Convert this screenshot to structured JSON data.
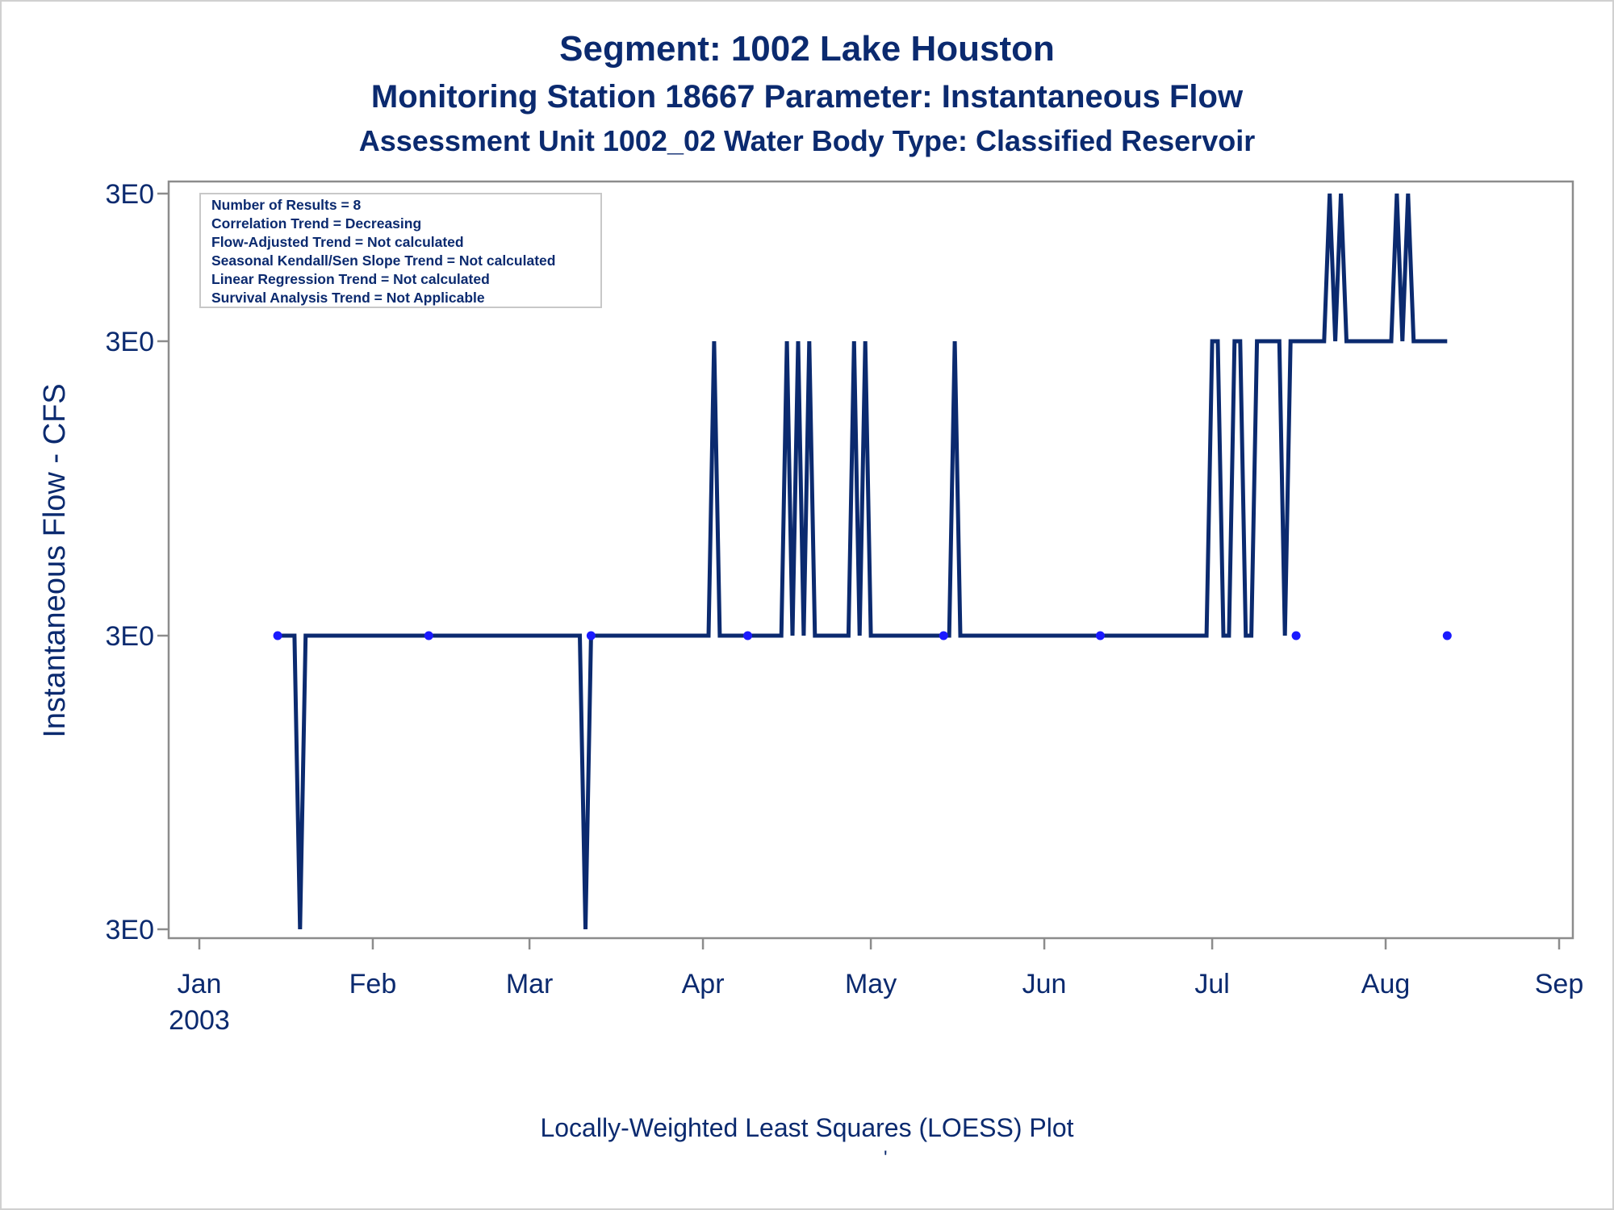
{
  "chart_data": {
    "type": "line",
    "title": "Segment: 1002  Lake Houston",
    "subtitle1": "Monitoring Station 18667 Parameter: Instantaneous Flow",
    "subtitle2": "Assessment Unit 1002_02   Water Body Type: Classified Reservoir",
    "ylabel": "Instantaneous Flow - CFS",
    "footnote": "Locally-Weighted Least Squares (LOESS) Plot",
    "footmark": "'",
    "x_ticks": [
      {
        "date": "2003-01-01",
        "label": "Jan",
        "sublabel": "2003"
      },
      {
        "date": "2003-02-01",
        "label": "Feb"
      },
      {
        "date": "2003-03-01",
        "label": "Mar"
      },
      {
        "date": "2003-04-01",
        "label": "Apr"
      },
      {
        "date": "2003-05-01",
        "label": "May"
      },
      {
        "date": "2003-06-01",
        "label": "Jun"
      },
      {
        "date": "2003-07-01",
        "label": "Jul"
      },
      {
        "date": "2003-08-01",
        "label": "Aug"
      },
      {
        "date": "2003-09-01",
        "label": "Sep"
      }
    ],
    "y_ticks": [
      {
        "level": 0,
        "label": "3E0"
      },
      {
        "level": 1,
        "label": "3E0"
      },
      {
        "level": 2,
        "label": "3E0"
      },
      {
        "level": 3,
        "label": "3E0"
      }
    ],
    "stats_box": [
      "Number of Results = 8",
      "Correlation Trend = Decreasing",
      "Flow-Adjusted Trend = Not calculated",
      "Seasonal Kendall/Sen Slope Trend = Not calculated",
      "Linear Regression Trend = Not calculated",
      "Survival Analysis Trend = Not Applicable"
    ],
    "series": [
      {
        "type": "line",
        "points": [
          [
            "2003-01-15",
            1
          ],
          [
            "2003-01-18",
            1
          ],
          [
            "2003-01-19",
            0
          ],
          [
            "2003-01-20",
            1
          ],
          [
            "2003-03-10",
            1
          ],
          [
            "2003-03-11",
            0
          ],
          [
            "2003-03-12",
            1
          ],
          [
            "2003-04-02",
            1
          ],
          [
            "2003-04-03",
            2
          ],
          [
            "2003-04-04",
            1
          ],
          [
            "2003-04-15",
            1
          ],
          [
            "2003-04-16",
            2
          ],
          [
            "2003-04-17",
            1
          ],
          [
            "2003-04-18",
            2
          ],
          [
            "2003-04-19",
            1
          ],
          [
            "2003-04-20",
            2
          ],
          [
            "2003-04-21",
            1
          ],
          [
            "2003-04-27",
            1
          ],
          [
            "2003-04-28",
            2
          ],
          [
            "2003-04-29",
            1
          ],
          [
            "2003-04-30",
            2
          ],
          [
            "2003-05-01",
            1
          ],
          [
            "2003-05-15",
            1
          ],
          [
            "2003-05-16",
            2
          ],
          [
            "2003-05-17",
            1
          ],
          [
            "2003-06-30",
            1
          ],
          [
            "2003-07-01",
            2
          ],
          [
            "2003-07-02",
            2
          ],
          [
            "2003-07-03",
            1
          ],
          [
            "2003-07-04",
            1
          ],
          [
            "2003-07-05",
            2
          ],
          [
            "2003-07-06",
            2
          ],
          [
            "2003-07-07",
            1
          ],
          [
            "2003-07-08",
            1
          ],
          [
            "2003-07-09",
            2
          ],
          [
            "2003-07-13",
            2
          ],
          [
            "2003-07-14",
            1
          ],
          [
            "2003-07-15",
            2
          ],
          [
            "2003-07-21",
            2
          ],
          [
            "2003-07-22",
            3
          ],
          [
            "2003-07-23",
            2
          ],
          [
            "2003-07-24",
            3
          ],
          [
            "2003-07-25",
            2
          ],
          [
            "2003-08-02",
            2
          ],
          [
            "2003-08-03",
            3
          ],
          [
            "2003-08-04",
            2
          ],
          [
            "2003-08-05",
            3
          ],
          [
            "2003-08-06",
            2
          ],
          [
            "2003-08-12",
            2
          ]
        ]
      },
      {
        "type": "scatter",
        "points": [
          [
            "2003-01-15",
            1
          ],
          [
            "2003-02-11",
            1
          ],
          [
            "2003-03-12",
            1
          ],
          [
            "2003-04-09",
            1
          ],
          [
            "2003-05-14",
            1
          ],
          [
            "2003-06-11",
            1
          ],
          [
            "2003-07-16",
            1
          ],
          [
            "2003-08-12",
            1
          ]
        ]
      }
    ],
    "colors": {
      "line": "#0b2a6f",
      "marker": "#1a1aff",
      "text": "#0b2a6f",
      "axis": "#8c8c8c"
    }
  }
}
